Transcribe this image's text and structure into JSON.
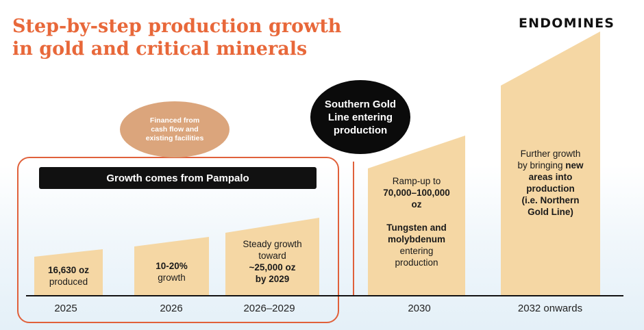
{
  "title": {
    "line1": "Step-by-step production growth",
    "line2": "in gold and critical minerals"
  },
  "logo": "ENDOMINES",
  "financing_note": "Financed from cash flow and existing facilities",
  "pampalo_banner": "Growth comes from Pampalo",
  "southern_gold_line": "Southern Gold Line entering production",
  "stages": [
    {
      "year": "2025",
      "lines": [
        {
          "text": "16,630 oz",
          "bold": true
        },
        {
          "text": "produced",
          "bold": false
        }
      ]
    },
    {
      "year": "2026",
      "lines": [
        {
          "text": "10-20%",
          "bold": true
        },
        {
          "text": "growth",
          "bold": false
        }
      ]
    },
    {
      "year": "2026–2029",
      "lines": [
        {
          "text": "Steady growth",
          "bold": false
        },
        {
          "text": "toward",
          "bold": false
        },
        {
          "text": "~25,000 oz",
          "bold": true
        },
        {
          "text": "by 2029",
          "bold": true
        }
      ]
    },
    {
      "year": "2030",
      "lines": [
        {
          "text": "Ramp-up to",
          "bold": false
        },
        {
          "text": "70,000–100,000",
          "bold": true
        },
        {
          "text": "oz",
          "bold": true
        },
        {
          "text": "",
          "bold": false
        },
        {
          "text": "Tungsten and",
          "bold": true
        },
        {
          "text": "molybdenum",
          "bold": true
        },
        {
          "text": "entering",
          "bold": false
        },
        {
          "text": "production",
          "bold": false
        }
      ]
    },
    {
      "year": "2032 onwards",
      "lines": [
        {
          "text": "Further growth",
          "bold": false
        },
        {
          "text": "by bringing new",
          "bold": false,
          "boldWord": "new"
        },
        {
          "text": "areas into",
          "bold": true
        },
        {
          "text": "production",
          "bold": true
        },
        {
          "text": "(i.e. Northern",
          "bold": true
        },
        {
          "text": "Gold Line)",
          "bold": true
        }
      ]
    }
  ],
  "colors": {
    "title": "#e8683a",
    "bar_fill": "#f5d7a4",
    "frame": "#e0603a",
    "bubble": "#dba57c"
  }
}
